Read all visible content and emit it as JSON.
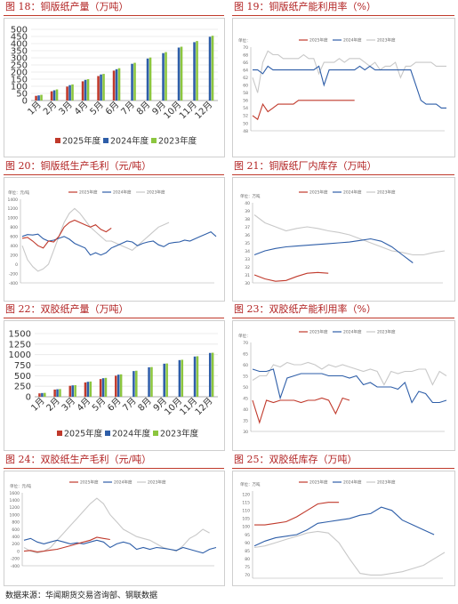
{
  "figures": [
    {
      "caption": "图 18：铜版纸产量（万吨）"
    },
    {
      "caption": "图 19：铜版纸产能利用率（%）"
    },
    {
      "caption": "图 20：铜版纸生产毛利（元/吨）"
    },
    {
      "caption": "图 21：铜版纸厂内库存（万吨）"
    },
    {
      "caption": "图 22：双胶纸产量（万吨）"
    },
    {
      "caption": "图 23：双胶纸产能利用率（%）"
    },
    {
      "caption": "图 24：双胶纸生产毛利（元/吨）"
    },
    {
      "caption": "图 25：双胶纸库存（万吨）"
    }
  ],
  "source": "数据来源：华闻期货交易咨询部、钢联数据",
  "colors": {
    "y2025": "#c0392b",
    "y2024": "#2e5ea8",
    "y2023": "#8cc63f",
    "gray2023": "#c8c8c8"
  },
  "chart_data": [
    {
      "type": "bar",
      "categories": [
        "1月",
        "2月",
        "3月",
        "4月",
        "5月",
        "6月",
        "7月",
        "8月",
        "9月",
        "10月",
        "11月",
        "12月"
      ],
      "ylim": [
        0,
        500
      ],
      "yticks": [
        0,
        50,
        100,
        150,
        200,
        250,
        300,
        350,
        400,
        450,
        500
      ],
      "series": [
        {
          "name": "2025年度",
          "values": [
            33,
            65,
            98,
            135,
            172,
            210,
            null,
            null,
            null,
            null,
            null,
            null
          ]
        },
        {
          "name": "2024年度",
          "values": [
            36,
            72,
            108,
            145,
            183,
            220,
            258,
            295,
            333,
            372,
            410,
            448
          ]
        },
        {
          "name": "2023年度",
          "values": [
            40,
            78,
            113,
            150,
            187,
            227,
            265,
            302,
            340,
            378,
            418,
            455
          ]
        }
      ]
    },
    {
      "type": "line",
      "unit": "单位：",
      "ylim": [
        48,
        70
      ],
      "yticks": [
        48,
        50,
        52,
        54,
        56,
        58,
        60,
        62,
        64,
        66,
        68,
        70
      ],
      "series": [
        {
          "name": "2025年度",
          "values": [
            52,
            51,
            55,
            53,
            54,
            55,
            55,
            55,
            55,
            56,
            56,
            56,
            56,
            56,
            56,
            56,
            56,
            56,
            56,
            56,
            56
          ]
        },
        {
          "name": "2024年度",
          "values": [
            64,
            64,
            63,
            65,
            64,
            64,
            64,
            64,
            64,
            64,
            64,
            64,
            64,
            65,
            60,
            64,
            64,
            64,
            64,
            64,
            64,
            65,
            64,
            65,
            64,
            64,
            64,
            64,
            64,
            64,
            64,
            64,
            60,
            56,
            55,
            55,
            55,
            54,
            54
          ]
        },
        {
          "name": "2023年度",
          "values": [
            62,
            58,
            66,
            69,
            68,
            68,
            67,
            67,
            67,
            67,
            68,
            67,
            67,
            63,
            66,
            66,
            66,
            67,
            66,
            67,
            67,
            67,
            66,
            65,
            66,
            64,
            65,
            65,
            66,
            62,
            65,
            65,
            66,
            66,
            66,
            66,
            65,
            65,
            65
          ]
        }
      ]
    },
    {
      "type": "line",
      "unit": "单位：元/吨",
      "ylim": [
        -400,
        1400
      ],
      "yticks": [
        -400,
        -200,
        0,
        200,
        400,
        600,
        800,
        1000,
        1200,
        1400
      ],
      "series": [
        {
          "name": "2025年度",
          "values": [
            560,
            580,
            500,
            400,
            350,
            500,
            480,
            600,
            800,
            900,
            950,
            900,
            850,
            800,
            850,
            750,
            700,
            780
          ]
        },
        {
          "name": "2024年度",
          "values": [
            600,
            640,
            630,
            650,
            550,
            500,
            520,
            560,
            600,
            540,
            450,
            400,
            350,
            200,
            250,
            200,
            250,
            350,
            400,
            450,
            500,
            480,
            400,
            450,
            480,
            500,
            420,
            380,
            450,
            470,
            480,
            520,
            500,
            550,
            600,
            650,
            700,
            600
          ]
        },
        {
          "name": "2023年度",
          "values": [
            400,
            100,
            -50,
            -150,
            -100,
            0,
            300,
            600,
            900,
            1100,
            1200,
            1100,
            950,
            800,
            700,
            600,
            500,
            500,
            450,
            400,
            350,
            300,
            400,
            500,
            600,
            700,
            800,
            850,
            900
          ]
        }
      ]
    },
    {
      "type": "line",
      "unit": "单位：万吨",
      "ylim": [
        30,
        40
      ],
      "yticks": [
        30,
        31,
        32,
        33,
        34,
        35,
        36,
        37,
        38,
        39,
        40
      ],
      "series": [
        {
          "name": "2025年度",
          "values": [
            31,
            30.5,
            30.2,
            30.3,
            30.8,
            31.2,
            31.3,
            31.2
          ]
        },
        {
          "name": "2024年度",
          "values": [
            33.5,
            34,
            34.3,
            34.5,
            34.6,
            34.7,
            34.8,
            34.9,
            35,
            35.1,
            35.3,
            35.5,
            35.2,
            34.5,
            33.5,
            32.5
          ]
        },
        {
          "name": "2023年度",
          "values": [
            38.5,
            37.5,
            37,
            36.5,
            36.8,
            37,
            36.8,
            36.5,
            36.3,
            36,
            35.5,
            35,
            34.5,
            34,
            33.8,
            33.5,
            33.5,
            33.8,
            34
          ]
        }
      ]
    },
    {
      "type": "bar",
      "categories": [
        "1月",
        "2月",
        "3月",
        "4月",
        "5月",
        "6月",
        "7月",
        "8月",
        "9月",
        "10月",
        "11月",
        "12月"
      ],
      "ylim": [
        0,
        1500
      ],
      "yticks": [
        0,
        250,
        500,
        750,
        1000,
        1250,
        1500
      ],
      "series": [
        {
          "name": "2025年度",
          "values": [
            80,
            170,
            260,
            340,
            420,
            500,
            null,
            null,
            null,
            null,
            null,
            null
          ]
        },
        {
          "name": "2024年度",
          "values": [
            88,
            178,
            270,
            355,
            440,
            525,
            610,
            700,
            785,
            870,
            955,
            1040
          ]
        },
        {
          "name": "2023年度",
          "values": [
            92,
            182,
            275,
            362,
            448,
            532,
            618,
            705,
            790,
            878,
            962,
            1045
          ]
        }
      ]
    },
    {
      "type": "line",
      "unit": "单位：",
      "ylim": [
        30,
        70
      ],
      "yticks": [
        30,
        35,
        40,
        45,
        50,
        55,
        60,
        65,
        70
      ],
      "series": [
        {
          "name": "2025年度",
          "values": [
            44,
            34,
            44,
            43,
            44,
            44,
            44,
            43,
            44,
            44,
            45,
            44,
            38,
            45,
            44
          ]
        },
        {
          "name": "2024年度",
          "values": [
            58,
            57,
            57,
            58,
            45,
            54,
            55,
            56,
            56,
            56,
            56,
            55,
            55,
            55,
            54,
            55,
            51,
            52,
            50,
            50,
            50,
            49,
            52,
            43,
            48,
            47,
            43,
            43,
            44
          ]
        },
        {
          "name": "2023年度",
          "values": [
            53,
            55,
            55,
            60,
            59,
            61,
            60,
            60,
            61,
            60,
            58,
            60,
            59,
            60,
            59,
            58,
            57,
            58,
            57,
            51,
            57,
            56,
            57,
            57,
            58,
            58,
            51,
            57,
            55
          ]
        }
      ]
    },
    {
      "type": "line",
      "unit": "单位：元/吨",
      "ylim": [
        -400,
        1600
      ],
      "yticks": [
        -400,
        -200,
        0,
        200,
        400,
        600,
        800,
        1000,
        1200,
        1400,
        1600
      ],
      "series": [
        {
          "name": "2025年度",
          "values": [
            0,
            20,
            -20,
            0,
            30,
            50,
            100,
            150,
            200,
            250,
            300,
            380,
            350,
            320
          ]
        },
        {
          "name": "2024年度",
          "values": [
            300,
            350,
            250,
            200,
            250,
            300,
            250,
            200,
            230,
            200,
            250,
            300,
            250,
            100,
            200,
            250,
            200,
            50,
            100,
            50,
            100,
            80,
            50,
            20,
            100,
            50,
            0,
            -50,
            50,
            100
          ]
        },
        {
          "name": "2023年度",
          "values": [
            100,
            0,
            -50,
            0,
            100,
            300,
            500,
            700,
            900,
            1100,
            1300,
            1450,
            1300,
            1000,
            800,
            600,
            500,
            400,
            350,
            300,
            200,
            100,
            50,
            0,
            150,
            350,
            450,
            600,
            500
          ]
        }
      ]
    },
    {
      "type": "line",
      "unit": "单位：万吨",
      "ylim": [
        68,
        122
      ],
      "yticks": [
        70,
        75,
        80,
        85,
        90,
        95,
        100,
        105,
        110,
        115,
        120
      ],
      "series": [
        {
          "name": "2025年度",
          "values": [
            101,
            101,
            102,
            103,
            106,
            110,
            114,
            115,
            115
          ]
        },
        {
          "name": "2024年度",
          "values": [
            88,
            91,
            93,
            94,
            95,
            98,
            102,
            103,
            104,
            105,
            107,
            108,
            112,
            110,
            104,
            101,
            98,
            95
          ]
        },
        {
          "name": "2023年度",
          "values": [
            87,
            88,
            90,
            92,
            94,
            96,
            97,
            96,
            90,
            80,
            71,
            70,
            70,
            71,
            72,
            74,
            76,
            80,
            84
          ]
        }
      ]
    }
  ]
}
